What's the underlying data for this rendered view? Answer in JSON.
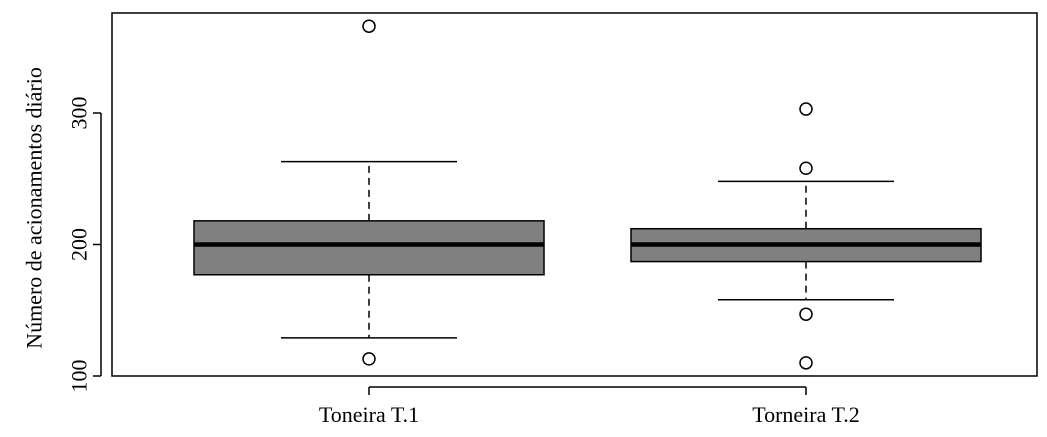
{
  "chart_data": {
    "type": "boxplot",
    "title": "",
    "xlabel": "",
    "ylabel": "Número de acionamentos diário",
    "ylim": [
      90,
      370
    ],
    "yticks": [
      100,
      200,
      300
    ],
    "grid": false,
    "categories": [
      "Toneira T.1",
      "Torneira T.2"
    ],
    "boxes": [
      {
        "label": "Toneira T.1",
        "whisker_low": 129,
        "q1": 177,
        "median": 200,
        "q3": 218,
        "whisker_high": 263,
        "outliers": [
          113,
          366
        ]
      },
      {
        "label": "Torneira T.2",
        "whisker_low": 158,
        "q1": 187,
        "median": 200,
        "q3": 212,
        "whisker_high": 248,
        "outliers": [
          110,
          147,
          258,
          303
        ]
      }
    ],
    "box_fill": "#808080",
    "median_color": "#000000",
    "outlier_style": "open-circle"
  }
}
